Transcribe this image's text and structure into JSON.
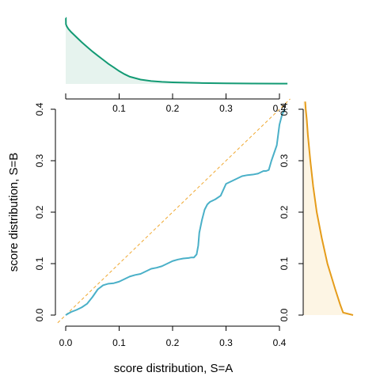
{
  "chart_data": {
    "type": "line",
    "xlabel": "score distribution, S=A",
    "ylabel": "score distribution, S=B",
    "xlim": [
      -0.015,
      0.42
    ],
    "ylim": [
      -0.015,
      0.42
    ],
    "ticks": [
      0.0,
      0.1,
      0.2,
      0.3,
      0.4
    ],
    "x_tick_labels": [
      "0.0",
      "0.1",
      "0.2",
      "0.3",
      "0.4"
    ],
    "y_tick_labels": [
      "0.0",
      "0.1",
      "0.2",
      "0.3",
      "0.4"
    ],
    "top_tick_labels": [
      "0.1",
      "0.2",
      "0.3",
      "0.4"
    ],
    "right_tick_labels": [
      "0.0",
      "0.1",
      "0.2",
      "0.3",
      "0.4"
    ],
    "reference_line": {
      "x": [
        -0.015,
        0.42
      ],
      "y": [
        -0.015,
        0.42
      ],
      "style": "dashed",
      "color": "#f0a830"
    },
    "qq_curve": {
      "color": "#4ab0c8",
      "x": [
        0.0,
        0.005,
        0.01,
        0.02,
        0.03,
        0.04,
        0.05,
        0.06,
        0.07,
        0.08,
        0.09,
        0.1,
        0.11,
        0.12,
        0.13,
        0.14,
        0.15,
        0.16,
        0.17,
        0.18,
        0.19,
        0.2,
        0.21,
        0.22,
        0.23,
        0.235,
        0.24,
        0.245,
        0.248,
        0.25,
        0.255,
        0.26,
        0.265,
        0.27,
        0.28,
        0.29,
        0.3,
        0.31,
        0.32,
        0.33,
        0.34,
        0.35,
        0.36,
        0.37,
        0.375,
        0.38,
        0.385,
        0.39,
        0.395,
        0.4,
        0.405,
        0.41
      ],
      "y": [
        0.0,
        0.003,
        0.006,
        0.01,
        0.015,
        0.022,
        0.035,
        0.05,
        0.058,
        0.061,
        0.062,
        0.065,
        0.07,
        0.075,
        0.078,
        0.08,
        0.085,
        0.09,
        0.092,
        0.095,
        0.1,
        0.105,
        0.108,
        0.11,
        0.111,
        0.112,
        0.112,
        0.118,
        0.135,
        0.16,
        0.185,
        0.205,
        0.215,
        0.22,
        0.225,
        0.232,
        0.255,
        0.26,
        0.265,
        0.27,
        0.272,
        0.273,
        0.275,
        0.28,
        0.28,
        0.282,
        0.3,
        0.315,
        0.33,
        0.37,
        0.39,
        0.4
      ]
    },
    "top_density": {
      "color": "#139a74",
      "fill": "#e6f3ee",
      "x": [
        0.0,
        0.0003,
        0.0005,
        0.002,
        0.005,
        0.01,
        0.02,
        0.03,
        0.04,
        0.05,
        0.06,
        0.07,
        0.08,
        0.09,
        0.1,
        0.11,
        0.12,
        0.14,
        0.16,
        0.18,
        0.2,
        0.25,
        0.3,
        0.35,
        0.4,
        0.415
      ],
      "density": [
        6.4,
        6.4,
        5.8,
        5.6,
        5.35,
        5.05,
        4.55,
        4.05,
        3.6,
        3.15,
        2.75,
        2.35,
        1.95,
        1.6,
        1.25,
        0.95,
        0.7,
        0.42,
        0.28,
        0.2,
        0.15,
        0.09,
        0.06,
        0.04,
        0.03,
        0.03
      ]
    },
    "right_density": {
      "color": "#e59c1a",
      "fill": "#fdf5e4",
      "y": [
        0.0,
        0.005,
        0.02,
        0.05,
        0.1,
        0.15,
        0.2,
        0.25,
        0.3,
        0.35,
        0.38,
        0.4,
        0.415
      ],
      "density": [
        3.5,
        2.8,
        2.6,
        2.25,
        1.7,
        1.3,
        0.95,
        0.7,
        0.5,
        0.33,
        0.25,
        0.18,
        0.14
      ]
    }
  }
}
